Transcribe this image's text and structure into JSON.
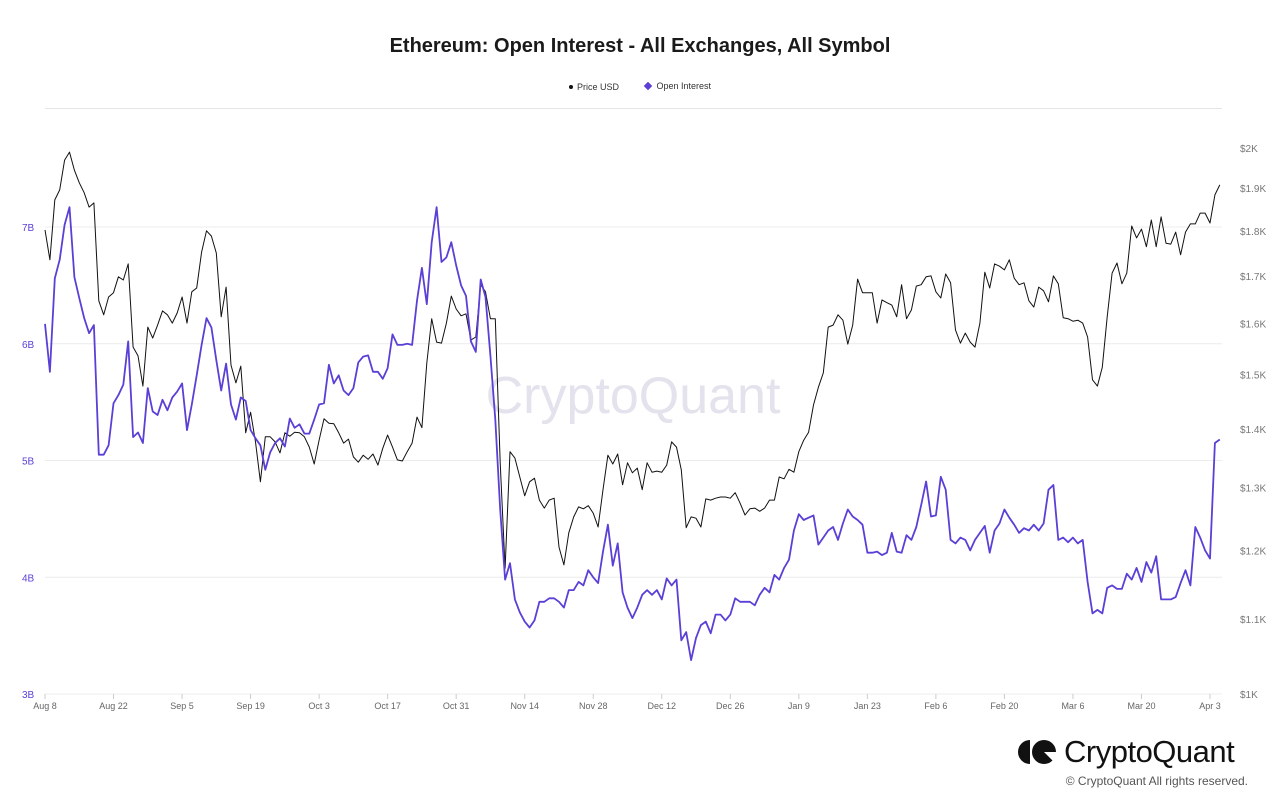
{
  "title": "Ethereum: Open Interest - All Exchanges, All Symbol",
  "legend": [
    {
      "label": "Price USD",
      "color": "#111111",
      "marker": "dot"
    },
    {
      "label": "Open Interest",
      "color": "#5b3fd6",
      "marker": "diamond"
    }
  ],
  "watermark": "CryptoQuant",
  "footer": {
    "brand": "CryptoQuant",
    "copyright": "© CryptoQuant All rights reserved."
  },
  "chart_data": {
    "type": "line",
    "title": "Ethereum: Open Interest - All Exchanges, All Symbol",
    "grid": true,
    "legend_position": "top-center",
    "x_ticks": [
      {
        "label": "Aug 8",
        "date": "2022-08-08"
      },
      {
        "label": "Aug 22",
        "date": "2022-08-22"
      },
      {
        "label": "Sep 5",
        "date": "2022-09-05"
      },
      {
        "label": "Sep 19",
        "date": "2022-09-19"
      },
      {
        "label": "Oct 3",
        "date": "2022-10-03"
      },
      {
        "label": "Oct 17",
        "date": "2022-10-17"
      },
      {
        "label": "Oct 31",
        "date": "2022-10-31"
      },
      {
        "label": "Nov 14",
        "date": "2022-11-14"
      },
      {
        "label": "Nov 28",
        "date": "2022-11-28"
      },
      {
        "label": "Dec 12",
        "date": "2022-12-12"
      },
      {
        "label": "Dec 26",
        "date": "2022-12-26"
      },
      {
        "label": "Jan 9",
        "date": "2023-01-09"
      },
      {
        "label": "Jan 23",
        "date": "2023-01-23"
      },
      {
        "label": "Feb 6",
        "date": "2023-02-06"
      },
      {
        "label": "Feb 20",
        "date": "2023-02-20"
      },
      {
        "label": "Mar 6",
        "date": "2023-03-06"
      },
      {
        "label": "Mar 20",
        "date": "2023-03-20"
      },
      {
        "label": "Apr 3",
        "date": "2023-04-03"
      }
    ],
    "y_left": {
      "ticks": [
        "3B",
        "4B",
        "5B",
        "6B",
        "7B"
      ],
      "tick_values": [
        3,
        4,
        5,
        6,
        7
      ],
      "range": [
        3,
        8
      ],
      "scale": "linear",
      "unit": "billion USD",
      "color": "#5b3fd6"
    },
    "y_right": {
      "ticks": [
        "$1K",
        "$1.1K",
        "$1.2K",
        "$1.3K",
        "$1.4K",
        "$1.5K",
        "$1.6K",
        "$1.7K",
        "$1.8K",
        "$1.9K",
        "$2K"
      ],
      "tick_values": [
        1000,
        1100,
        1200,
        1300,
        1400,
        1500,
        1600,
        1700,
        1800,
        1900,
        2000
      ],
      "range": [
        1000,
        2000
      ],
      "scale": "log"
    },
    "dates": [
      "2022-08-08",
      "2022-08-09",
      "2022-08-10",
      "2022-08-11",
      "2022-08-12",
      "2022-08-13",
      "2022-08-14",
      "2022-08-15",
      "2022-08-16",
      "2022-08-17",
      "2022-08-18",
      "2022-08-19",
      "2022-08-20",
      "2022-08-21",
      "2022-08-22",
      "2022-08-23",
      "2022-08-24",
      "2022-08-25",
      "2022-08-26",
      "2022-08-27",
      "2022-08-28",
      "2022-08-29",
      "2022-08-30",
      "2022-08-31",
      "2022-09-01",
      "2022-09-02",
      "2022-09-03",
      "2022-09-04",
      "2022-09-05",
      "2022-09-06",
      "2022-09-07",
      "2022-09-08",
      "2022-09-09",
      "2022-09-10",
      "2022-09-11",
      "2022-09-12",
      "2022-09-13",
      "2022-09-14",
      "2022-09-15",
      "2022-09-16",
      "2022-09-17",
      "2022-09-18",
      "2022-09-19",
      "2022-09-20",
      "2022-09-21",
      "2022-09-22",
      "2022-09-23",
      "2022-09-24",
      "2022-09-25",
      "2022-09-26",
      "2022-09-27",
      "2022-09-28",
      "2022-09-29",
      "2022-09-30",
      "2022-10-01",
      "2022-10-02",
      "2022-10-03",
      "2022-10-04",
      "2022-10-05",
      "2022-10-06",
      "2022-10-07",
      "2022-10-08",
      "2022-10-09",
      "2022-10-10",
      "2022-10-11",
      "2022-10-12",
      "2022-10-13",
      "2022-10-14",
      "2022-10-15",
      "2022-10-16",
      "2022-10-17",
      "2022-10-18",
      "2022-10-19",
      "2022-10-20",
      "2022-10-21",
      "2022-10-22",
      "2022-10-23",
      "2022-10-24",
      "2022-10-25",
      "2022-10-26",
      "2022-10-27",
      "2022-10-28",
      "2022-10-29",
      "2022-10-30",
      "2022-10-31",
      "2022-11-01",
      "2022-11-02",
      "2022-11-03",
      "2022-11-04",
      "2022-11-05",
      "2022-11-06",
      "2022-11-07",
      "2022-11-08",
      "2022-11-09",
      "2022-11-10",
      "2022-11-11",
      "2022-11-12",
      "2022-11-13",
      "2022-11-14",
      "2022-11-15",
      "2022-11-16",
      "2022-11-17",
      "2022-11-18",
      "2022-11-19",
      "2022-11-20",
      "2022-11-21",
      "2022-11-22",
      "2022-11-23",
      "2022-11-24",
      "2022-11-25",
      "2022-11-26",
      "2022-11-27",
      "2022-11-28",
      "2022-11-29",
      "2022-11-30",
      "2022-12-01",
      "2022-12-02",
      "2022-12-03",
      "2022-12-04",
      "2022-12-05",
      "2022-12-06",
      "2022-12-07",
      "2022-12-08",
      "2022-12-09",
      "2022-12-10",
      "2022-12-11",
      "2022-12-12",
      "2022-12-13",
      "2022-12-14",
      "2022-12-15",
      "2022-12-16",
      "2022-12-17",
      "2022-12-18",
      "2022-12-19",
      "2022-12-20",
      "2022-12-21",
      "2022-12-22",
      "2022-12-23",
      "2022-12-24",
      "2022-12-25",
      "2022-12-26",
      "2022-12-27",
      "2022-12-28",
      "2022-12-29",
      "2022-12-30",
      "2022-12-31",
      "2023-01-01",
      "2023-01-02",
      "2023-01-03",
      "2023-01-04",
      "2023-01-05",
      "2023-01-06",
      "2023-01-07",
      "2023-01-08",
      "2023-01-09",
      "2023-01-10",
      "2023-01-11",
      "2023-01-12",
      "2023-01-13",
      "2023-01-14",
      "2023-01-15",
      "2023-01-16",
      "2023-01-17",
      "2023-01-18",
      "2023-01-19",
      "2023-01-20",
      "2023-01-21",
      "2023-01-22",
      "2023-01-23",
      "2023-01-24",
      "2023-01-25",
      "2023-01-26",
      "2023-01-27",
      "2023-01-28",
      "2023-01-29",
      "2023-01-30",
      "2023-01-31",
      "2023-02-01",
      "2023-02-02",
      "2023-02-03",
      "2023-02-04",
      "2023-02-05",
      "2023-02-06",
      "2023-02-07",
      "2023-02-08",
      "2023-02-09",
      "2023-02-10",
      "2023-02-11",
      "2023-02-12",
      "2023-02-13",
      "2023-02-14",
      "2023-02-15",
      "2023-02-16",
      "2023-02-17",
      "2023-02-18",
      "2023-02-19",
      "2023-02-20",
      "2023-02-21",
      "2023-02-22",
      "2023-02-23",
      "2023-02-24",
      "2023-02-25",
      "2023-02-26",
      "2023-02-27",
      "2023-02-28",
      "2023-03-01",
      "2023-03-02",
      "2023-03-03",
      "2023-03-04",
      "2023-03-05",
      "2023-03-06",
      "2023-03-07",
      "2023-03-08",
      "2023-03-09",
      "2023-03-10",
      "2023-03-11",
      "2023-03-12",
      "2023-03-13",
      "2023-03-14",
      "2023-03-15",
      "2023-03-16",
      "2023-03-17",
      "2023-03-18",
      "2023-03-19",
      "2023-03-20",
      "2023-03-21",
      "2023-03-22",
      "2023-03-23",
      "2023-03-24",
      "2023-03-25",
      "2023-03-26",
      "2023-03-27",
      "2023-03-28",
      "2023-03-29",
      "2023-03-30",
      "2023-03-31",
      "2023-04-01",
      "2023-04-02",
      "2023-04-03",
      "2023-04-04",
      "2023-04-05"
    ],
    "series": [
      {
        "name": "Price USD",
        "axis": "right",
        "color": "#111111",
        "values": [
          1802,
          1735,
          1872,
          1896,
          1969,
          1989,
          1944,
          1913,
          1889,
          1855,
          1865,
          1647,
          1618,
          1655,
          1664,
          1698,
          1691,
          1726,
          1553,
          1536,
          1478,
          1593,
          1571,
          1597,
          1626,
          1618,
          1601,
          1622,
          1655,
          1601,
          1666,
          1674,
          1752,
          1800,
          1788,
          1750,
          1614,
          1676,
          1518,
          1484,
          1516,
          1393,
          1430,
          1377,
          1309,
          1386,
          1386,
          1377,
          1358,
          1393,
          1387,
          1394,
          1393,
          1386,
          1368,
          1339,
          1380,
          1418,
          1410,
          1409,
          1393,
          1375,
          1382,
          1351,
          1342,
          1354,
          1347,
          1356,
          1337,
          1366,
          1389,
          1368,
          1346,
          1344,
          1360,
          1375,
          1421,
          1402,
          1522,
          1610,
          1563,
          1561,
          1601,
          1657,
          1630,
          1616,
          1620,
          1567,
          1573,
          1681,
          1666,
          1610,
          1610,
          1341,
          1173,
          1360,
          1349,
          1317,
          1286,
          1309,
          1315,
          1279,
          1266,
          1279,
          1282,
          1205,
          1178,
          1227,
          1252,
          1268,
          1265,
          1270,
          1258,
          1236,
          1296,
          1354,
          1339,
          1356,
          1304,
          1341,
          1324,
          1332,
          1296,
          1341,
          1325,
          1327,
          1325,
          1337,
          1377,
          1368,
          1329,
          1235,
          1252,
          1250,
          1236,
          1281,
          1279,
          1282,
          1284,
          1284,
          1282,
          1291,
          1274,
          1255,
          1265,
          1266,
          1261,
          1266,
          1279,
          1279,
          1317,
          1314,
          1330,
          1325,
          1360,
          1380,
          1394,
          1443,
          1476,
          1503,
          1593,
          1597,
          1618,
          1607,
          1559,
          1597,
          1693,
          1664,
          1664,
          1664,
          1601,
          1649,
          1643,
          1638,
          1614,
          1681,
          1610,
          1628,
          1678,
          1681,
          1698,
          1700,
          1666,
          1653,
          1704,
          1685,
          1587,
          1561,
          1581,
          1563,
          1553,
          1601,
          1708,
          1674,
          1726,
          1721,
          1713,
          1735,
          1695,
          1681,
          1685,
          1647,
          1634,
          1676,
          1668,
          1645,
          1700,
          1683,
          1612,
          1610,
          1605,
          1607,
          1601,
          1573,
          1490,
          1478,
          1514,
          1614,
          1706,
          1728,
          1683,
          1706,
          1811,
          1784,
          1804,
          1764,
          1825,
          1764,
          1832,
          1772,
          1770,
          1797,
          1746,
          1797,
          1816,
          1816,
          1841,
          1841,
          1818,
          1884,
          1908
        ]
      },
      {
        "name": "Open Interest",
        "axis": "left",
        "color": "#5b3fd6",
        "values": [
          6.17,
          5.76,
          6.56,
          6.72,
          7.02,
          7.17,
          6.57,
          6.39,
          6.22,
          6.09,
          6.16,
          5.05,
          5.05,
          5.13,
          5.49,
          5.56,
          5.65,
          6.02,
          5.2,
          5.24,
          5.15,
          5.62,
          5.42,
          5.39,
          5.52,
          5.43,
          5.54,
          5.59,
          5.66,
          5.26,
          5.48,
          5.73,
          5.99,
          6.22,
          6.14,
          5.86,
          5.6,
          5.83,
          5.48,
          5.35,
          5.54,
          5.51,
          5.26,
          5.19,
          5.13,
          4.92,
          5.07,
          5.15,
          5.19,
          5.12,
          5.36,
          5.28,
          5.31,
          5.23,
          5.23,
          5.35,
          5.48,
          5.49,
          5.82,
          5.66,
          5.73,
          5.6,
          5.56,
          5.62,
          5.84,
          5.89,
          5.9,
          5.76,
          5.76,
          5.7,
          5.79,
          6.08,
          5.99,
          5.99,
          6.0,
          5.99,
          6.37,
          6.65,
          6.34,
          6.87,
          7.17,
          6.7,
          6.74,
          6.87,
          6.67,
          6.5,
          6.41,
          6.02,
          5.93,
          6.55,
          6.4,
          5.9,
          5.35,
          4.58,
          3.98,
          4.12,
          3.81,
          3.7,
          3.62,
          3.57,
          3.63,
          3.79,
          3.79,
          3.82,
          3.82,
          3.79,
          3.74,
          3.89,
          3.89,
          3.96,
          3.93,
          4.06,
          4.0,
          3.95,
          4.22,
          4.45,
          4.1,
          4.29,
          3.87,
          3.74,
          3.65,
          3.74,
          3.85,
          3.89,
          3.85,
          3.89,
          3.81,
          3.99,
          3.93,
          3.98,
          3.46,
          3.53,
          3.29,
          3.48,
          3.59,
          3.62,
          3.52,
          3.68,
          3.68,
          3.63,
          3.68,
          3.82,
          3.79,
          3.79,
          3.79,
          3.76,
          3.85,
          3.91,
          3.87,
          4.02,
          3.98,
          4.08,
          4.15,
          4.4,
          4.54,
          4.49,
          4.51,
          4.53,
          4.28,
          4.34,
          4.4,
          4.43,
          4.32,
          4.46,
          4.58,
          4.52,
          4.49,
          4.45,
          4.21,
          4.21,
          4.22,
          4.19,
          4.21,
          4.38,
          4.22,
          4.21,
          4.36,
          4.32,
          4.43,
          4.62,
          4.82,
          4.52,
          4.53,
          4.86,
          4.75,
          4.32,
          4.29,
          4.34,
          4.32,
          4.23,
          4.32,
          4.38,
          4.44,
          4.21,
          4.4,
          4.46,
          4.58,
          4.51,
          4.45,
          4.38,
          4.42,
          4.4,
          4.45,
          4.4,
          4.46,
          4.75,
          4.79,
          4.32,
          4.34,
          4.3,
          4.34,
          4.29,
          4.32,
          3.96,
          3.69,
          3.72,
          3.69,
          3.91,
          3.93,
          3.9,
          3.9,
          4.03,
          3.98,
          4.08,
          3.96,
          4.13,
          4.04,
          4.18,
          3.81,
          3.81,
          3.81,
          3.83,
          3.95,
          4.06,
          3.93,
          4.43,
          4.34,
          4.23,
          4.16,
          5.15,
          5.18
        ]
      }
    ]
  }
}
